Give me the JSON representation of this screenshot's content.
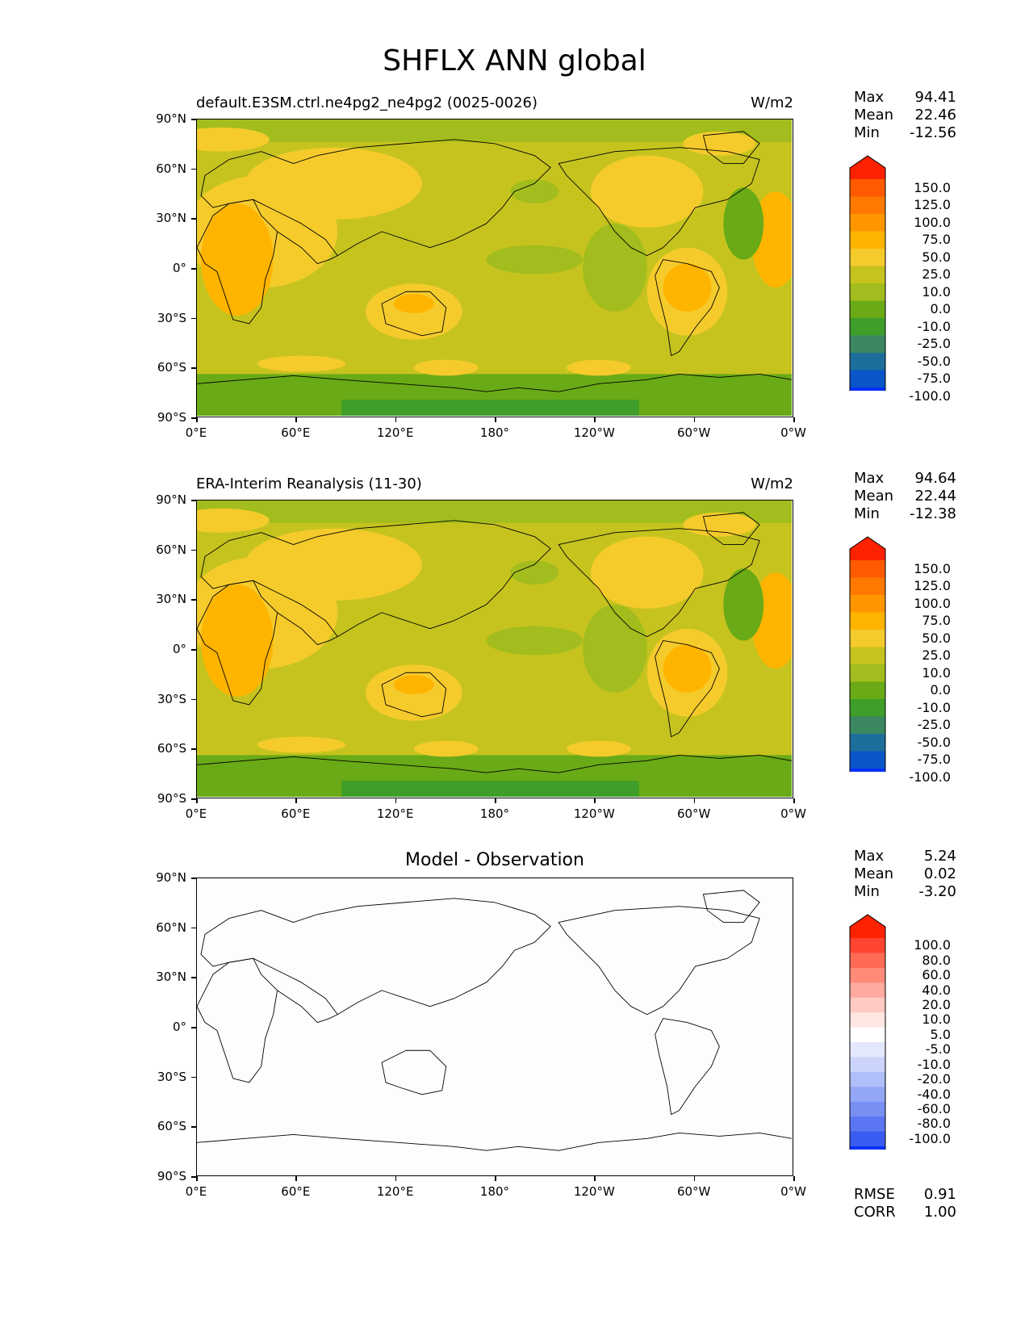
{
  "figure": {
    "title": "SHFLX ANN global"
  },
  "axes": {
    "lat_ticks": [
      "90°N",
      "60°N",
      "30°N",
      "0°",
      "30°S",
      "60°S",
      "90°S"
    ],
    "lon_ticks": [
      "0°E",
      "60°E",
      "120°E",
      "180°",
      "120°W",
      "60°W",
      "0°W"
    ]
  },
  "panels": [
    {
      "id": "test",
      "subtitle": "default.E3SM.ctrl.ne4pg2_ne4pg2 (0025-0026)",
      "units": "W/m2",
      "stats": {
        "max_label": "Max",
        "max": "94.41",
        "mean_label": "Mean",
        "mean": "22.46",
        "min_label": "Min",
        "min": "-12.56"
      },
      "colorbar_labels": [
        "150.0",
        "125.0",
        "100.0",
        "75.0",
        "50.0",
        "25.0",
        "10.0",
        "0.0",
        "-10.0",
        "-25.0",
        "-50.0",
        "-75.0",
        "-100.0"
      ],
      "colorbar_colors": [
        "#ff2200",
        "#ff5a00",
        "#ff7800",
        "#ff9600",
        "#ffb400",
        "#f5cb2c",
        "#c6c31f",
        "#a2bd1d",
        "#6aaa16",
        "#3f9e2a",
        "#3a8760",
        "#1e6e9b",
        "#0a55c8",
        "#0030ff"
      ],
      "field": "full"
    },
    {
      "id": "reference",
      "subtitle": "ERA-Interim Reanalysis (11-30)",
      "units": "W/m2",
      "stats": {
        "max_label": "Max",
        "max": "94.64",
        "mean_label": "Mean",
        "mean": "22.44",
        "min_label": "Min",
        "min": "-12.38"
      },
      "colorbar_labels": [
        "150.0",
        "125.0",
        "100.0",
        "75.0",
        "50.0",
        "25.0",
        "10.0",
        "0.0",
        "-10.0",
        "-25.0",
        "-50.0",
        "-75.0",
        "-100.0"
      ],
      "colorbar_colors": [
        "#ff2200",
        "#ff5a00",
        "#ff7800",
        "#ff9600",
        "#ffb400",
        "#f5cb2c",
        "#c6c31f",
        "#a2bd1d",
        "#6aaa16",
        "#3f9e2a",
        "#3a8760",
        "#1e6e9b",
        "#0a55c8",
        "#0030ff"
      ],
      "field": "full"
    },
    {
      "id": "difference",
      "title": "Model - Observation",
      "stats": {
        "max_label": "Max",
        "max": "5.24",
        "mean_label": "Mean",
        "mean": "0.02",
        "min_label": "Min",
        "min": "-3.20"
      },
      "colorbar_labels": [
        "100.0",
        "80.0",
        "60.0",
        "40.0",
        "20.0",
        "10.0",
        "5.0",
        "-5.0",
        "-10.0",
        "-20.0",
        "-40.0",
        "-60.0",
        "-80.0",
        "-100.0"
      ],
      "colorbar_colors": [
        "#ff2200",
        "#ff4530",
        "#ff6a55",
        "#ff8a78",
        "#ffaa9e",
        "#ffcac2",
        "#ffe6e2",
        "#ffffff",
        "#e4e8fd",
        "#cbd4fb",
        "#b0bef9",
        "#94a7f6",
        "#7890f4",
        "#5a76f2",
        "#3b5cf0",
        "#0a30ff"
      ],
      "field": "blank",
      "rmse_label": "RMSE",
      "rmse": "0.91",
      "corr_label": "CORR",
      "corr": "1.00"
    }
  ]
}
